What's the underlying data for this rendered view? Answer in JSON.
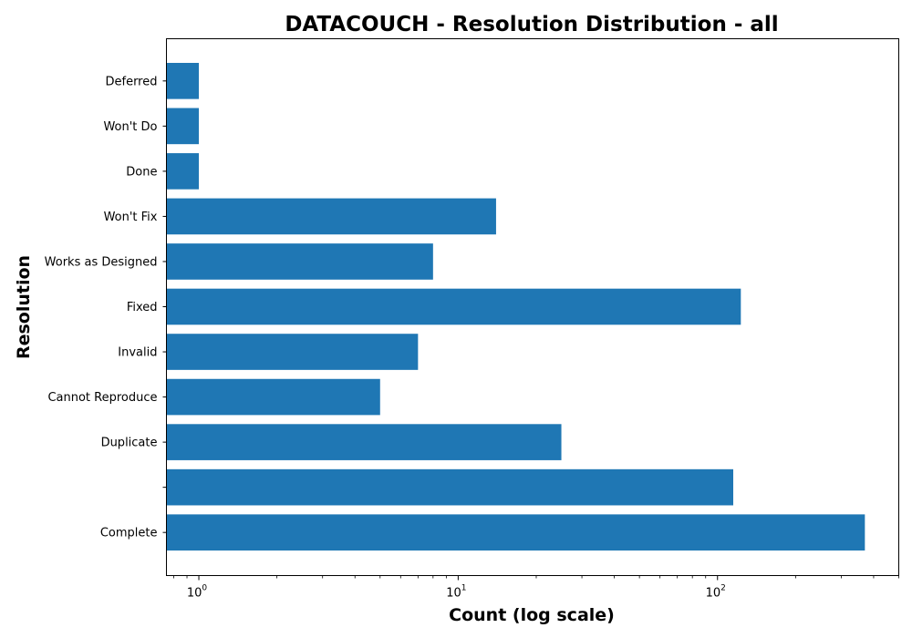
{
  "chart_data": {
    "type": "bar",
    "orientation": "horizontal",
    "title": "DATACOUCH - Resolution Distribution - all",
    "xlabel": "Count (log scale)",
    "ylabel": "Resolution",
    "xscale": "log",
    "xlim": [
      0.75,
      500
    ],
    "x_ticks": [
      {
        "base": "10",
        "exp": "0",
        "value": 1
      },
      {
        "base": "10",
        "exp": "1",
        "value": 10
      },
      {
        "base": "10",
        "exp": "2",
        "value": 100
      }
    ],
    "categories": [
      "Complete",
      "",
      "Duplicate",
      "Cannot Reproduce",
      "Invalid",
      "Fixed",
      "Works as Designed",
      "Won't Fix",
      "Done",
      "Won't Do",
      "Deferred"
    ],
    "values": [
      370,
      115,
      25,
      5,
      7,
      123,
      8,
      14,
      1,
      1,
      1
    ],
    "bar_color": "#1f77b4",
    "grid": false,
    "legend": "none"
  }
}
